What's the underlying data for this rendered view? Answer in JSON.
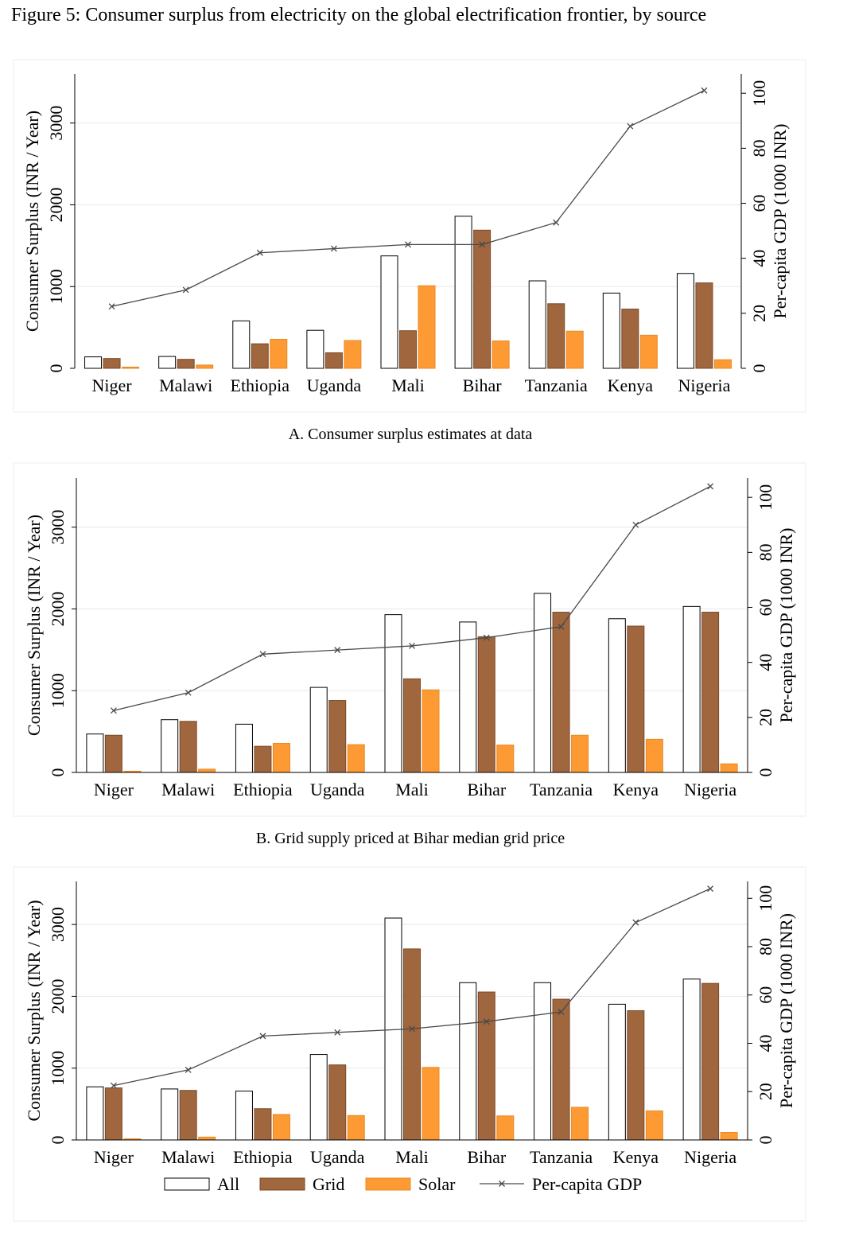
{
  "figure_title": "Figure 5: Consumer surplus from electricity on the global electrification frontier, by source",
  "colors": {
    "all": "#ffffff",
    "grid": "#a0663e",
    "solar": "#fd9a33",
    "gdp_line": "#4a4a4a",
    "gridline": "#e8e8e8"
  },
  "legend": [
    {
      "key": "all",
      "label": "All"
    },
    {
      "key": "grid",
      "label": "Grid"
    },
    {
      "key": "solar",
      "label": "Solar"
    },
    {
      "key": "gdp",
      "label": "Per-capita GDP"
    }
  ],
  "chart_data": [
    {
      "type": "bar",
      "caption": "A. Consumer surplus estimates at data",
      "categories": [
        "Niger",
        "Malawi",
        "Ethiopia",
        "Uganda",
        "Mali",
        "Bihar",
        "Tanzania",
        "Kenya",
        "Nigeria"
      ],
      "ylabel": "Consumer Surplus (INR / Year)",
      "ylim": [
        0,
        3600
      ],
      "yticks": [
        "0",
        "1000",
        "2000",
        "3000"
      ],
      "y2label": "Per-capita GDP (1000 INR)",
      "y2lim": [
        0,
        107
      ],
      "y2ticks": [
        "0",
        "20",
        "40",
        "60",
        "80",
        "100"
      ],
      "grid": true,
      "series": [
        {
          "name": "All",
          "key": "all",
          "values": [
            140,
            145,
            580,
            465,
            1375,
            1860,
            1070,
            920,
            1160
          ]
        },
        {
          "name": "Grid",
          "key": "grid",
          "values": [
            120,
            110,
            300,
            190,
            460,
            1690,
            790,
            725,
            1045
          ]
        },
        {
          "name": "Solar",
          "key": "solar",
          "values": [
            15,
            40,
            355,
            340,
            1010,
            335,
            455,
            405,
            105
          ]
        },
        {
          "name": "Per-capita GDP",
          "key": "gdp",
          "axis": "y2",
          "values": [
            22.5,
            28.5,
            42,
            43.5,
            45,
            45,
            53,
            88,
            101
          ]
        }
      ]
    },
    {
      "type": "bar",
      "caption": "B. Grid supply priced at Bihar median grid price",
      "categories": [
        "Niger",
        "Malawi",
        "Ethiopia",
        "Uganda",
        "Mali",
        "Bihar",
        "Tanzania",
        "Kenya",
        "Nigeria"
      ],
      "ylabel": "Consumer Surplus (INR / Year)",
      "ylim": [
        0,
        3600
      ],
      "yticks": [
        "0",
        "1000",
        "2000",
        "3000"
      ],
      "y2label": "Per-capita GDP (1000 INR)",
      "y2lim": [
        0,
        107
      ],
      "y2ticks": [
        "0",
        "20",
        "40",
        "60",
        "80",
        "100"
      ],
      "grid": true,
      "series": [
        {
          "name": "All",
          "key": "all",
          "values": [
            470,
            645,
            590,
            1040,
            1930,
            1840,
            2190,
            1880,
            2030
          ]
        },
        {
          "name": "Grid",
          "key": "grid",
          "values": [
            455,
            625,
            320,
            880,
            1145,
            1660,
            1960,
            1790,
            1960
          ]
        },
        {
          "name": "Solar",
          "key": "solar",
          "values": [
            15,
            40,
            355,
            340,
            1010,
            335,
            455,
            405,
            105
          ]
        },
        {
          "name": "Per-capita GDP",
          "key": "gdp",
          "axis": "y2",
          "values": [
            22.5,
            29,
            43,
            44.5,
            46,
            49,
            53,
            90,
            104
          ]
        }
      ]
    },
    {
      "type": "bar",
      "caption": "",
      "categories": [
        "Niger",
        "Malawi",
        "Ethiopia",
        "Uganda",
        "Mali",
        "Bihar",
        "Tanzania",
        "Kenya",
        "Nigeria"
      ],
      "ylabel": "Consumer Surplus (INR / Year)",
      "ylim": [
        0,
        3600
      ],
      "yticks": [
        "0",
        "1000",
        "2000",
        "3000"
      ],
      "y2label": "Per-capita GDP (1000 INR)",
      "y2lim": [
        0,
        107
      ],
      "y2ticks": [
        "0",
        "20",
        "40",
        "60",
        "80",
        "100"
      ],
      "grid": true,
      "series": [
        {
          "name": "All",
          "key": "all",
          "values": [
            740,
            710,
            680,
            1190,
            3090,
            2190,
            2190,
            1890,
            2240
          ]
        },
        {
          "name": "Grid",
          "key": "grid",
          "values": [
            725,
            690,
            435,
            1045,
            2660,
            2060,
            1960,
            1800,
            2180
          ]
        },
        {
          "name": "Solar",
          "key": "solar",
          "values": [
            15,
            40,
            355,
            340,
            1010,
            335,
            455,
            405,
            105
          ]
        },
        {
          "name": "Per-capita GDP",
          "key": "gdp",
          "axis": "y2",
          "values": [
            22.5,
            29,
            43,
            44.5,
            46,
            49,
            53,
            90,
            104
          ]
        }
      ]
    }
  ]
}
